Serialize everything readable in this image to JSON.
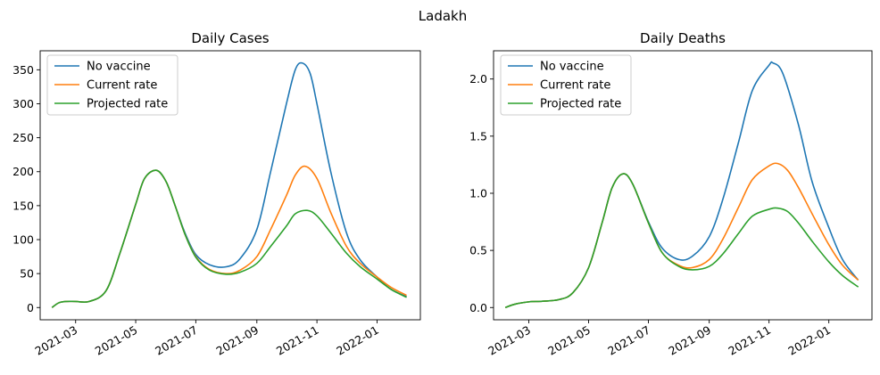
{
  "figure": {
    "suptitle": "Ladakh"
  },
  "chart_data": [
    {
      "type": "line",
      "title": "Daily Cases",
      "xlabel": "",
      "ylabel": "",
      "xlim": [
        "2021-01-24",
        "2022-02-14"
      ],
      "ylim": [
        -18,
        378
      ],
      "xticks": [
        "2021-03-01",
        "2021-05-01",
        "2021-07-01",
        "2021-09-01",
        "2021-11-01",
        "2022-01-01"
      ],
      "xtick_labels": [
        "2021-03",
        "2021-05",
        "2021-07",
        "2021-09",
        "2021-11",
        "2022-01"
      ],
      "yticks": [
        0,
        50,
        100,
        150,
        200,
        250,
        300,
        350
      ],
      "ytick_labels": [
        "0",
        "50",
        "100",
        "150",
        "200",
        "250",
        "300",
        "350"
      ],
      "grid": false,
      "legend": "top-left",
      "series": [
        {
          "name": "No vaccine",
          "color": "#1f77b4",
          "x": [
            "2021-02-05",
            "2021-02-12",
            "2021-02-20",
            "2021-03-01",
            "2021-03-15",
            "2021-04-01",
            "2021-04-15",
            "2021-05-01",
            "2021-05-10",
            "2021-05-22",
            "2021-06-01",
            "2021-06-10",
            "2021-06-20",
            "2021-07-01",
            "2021-07-15",
            "2021-08-01",
            "2021-08-15",
            "2021-09-01",
            "2021-09-15",
            "2021-10-01",
            "2021-10-10",
            "2021-10-17",
            "2021-10-25",
            "2021-11-01",
            "2021-11-15",
            "2021-12-01",
            "2021-12-15",
            "2022-01-01",
            "2022-01-15",
            "2022-01-31"
          ],
          "y": [
            0,
            7,
            9,
            9,
            9,
            25,
            80,
            152,
            190,
            202,
            185,
            150,
            110,
            78,
            63,
            60,
            72,
            115,
            200,
            300,
            350,
            360,
            345,
            300,
            200,
            110,
            70,
            45,
            27,
            16
          ]
        },
        {
          "name": "Current rate",
          "color": "#ff7f0e",
          "x": [
            "2021-02-05",
            "2021-02-12",
            "2021-02-20",
            "2021-03-01",
            "2021-03-15",
            "2021-04-01",
            "2021-04-15",
            "2021-05-01",
            "2021-05-10",
            "2021-05-22",
            "2021-06-01",
            "2021-06-10",
            "2021-06-20",
            "2021-07-01",
            "2021-07-15",
            "2021-08-01",
            "2021-08-15",
            "2021-09-01",
            "2021-09-15",
            "2021-10-01",
            "2021-10-10",
            "2021-10-20",
            "2021-11-01",
            "2021-11-15",
            "2021-12-01",
            "2021-12-15",
            "2022-01-01",
            "2022-01-15",
            "2022-01-31"
          ],
          "y": [
            0,
            7,
            9,
            9,
            9,
            25,
            80,
            152,
            190,
            202,
            185,
            150,
            108,
            75,
            56,
            50,
            55,
            75,
            115,
            165,
            195,
            208,
            190,
            140,
            90,
            65,
            45,
            30,
            18
          ]
        },
        {
          "name": "Projected rate",
          "color": "#2ca02c",
          "x": [
            "2021-02-05",
            "2021-02-12",
            "2021-02-20",
            "2021-03-01",
            "2021-03-15",
            "2021-04-01",
            "2021-04-15",
            "2021-05-01",
            "2021-05-10",
            "2021-05-22",
            "2021-06-01",
            "2021-06-10",
            "2021-06-20",
            "2021-07-01",
            "2021-07-15",
            "2021-08-01",
            "2021-08-15",
            "2021-09-01",
            "2021-09-15",
            "2021-10-01",
            "2021-10-10",
            "2021-10-22",
            "2021-11-01",
            "2021-11-15",
            "2021-12-01",
            "2021-12-15",
            "2022-01-01",
            "2022-01-15",
            "2022-01-31"
          ],
          "y": [
            0,
            7,
            9,
            9,
            9,
            25,
            80,
            152,
            190,
            202,
            185,
            150,
            108,
            74,
            55,
            49,
            52,
            65,
            90,
            120,
            138,
            143,
            135,
            110,
            80,
            60,
            42,
            27,
            15
          ]
        }
      ]
    },
    {
      "type": "line",
      "title": "Daily Deaths",
      "xlabel": "",
      "ylabel": "",
      "xlim": [
        "2021-01-24",
        "2022-02-14"
      ],
      "ylim": [
        -0.107,
        2.247
      ],
      "xticks": [
        "2021-03-01",
        "2021-05-01",
        "2021-07-01",
        "2021-09-01",
        "2021-11-01",
        "2022-01-01"
      ],
      "xtick_labels": [
        "2021-03",
        "2021-05",
        "2021-07",
        "2021-09",
        "2021-11",
        "2022-01"
      ],
      "yticks": [
        0.0,
        0.5,
        1.0,
        1.5,
        2.0
      ],
      "ytick_labels": [
        "0.0",
        "0.5",
        "1.0",
        "1.5",
        "2.0"
      ],
      "grid": false,
      "legend": "top-left",
      "series": [
        {
          "name": "No vaccine",
          "color": "#1f77b4",
          "x": [
            "2021-02-05",
            "2021-02-15",
            "2021-03-01",
            "2021-03-15",
            "2021-04-01",
            "2021-04-15",
            "2021-05-01",
            "2021-05-15",
            "2021-05-25",
            "2021-06-05",
            "2021-06-15",
            "2021-07-01",
            "2021-07-15",
            "2021-08-01",
            "2021-08-15",
            "2021-09-01",
            "2021-09-15",
            "2021-10-01",
            "2021-10-15",
            "2021-11-01",
            "2021-11-05",
            "2021-11-15",
            "2021-12-01",
            "2021-12-15",
            "2022-01-01",
            "2022-01-15",
            "2022-01-31"
          ],
          "y": [
            0,
            0.03,
            0.05,
            0.055,
            0.07,
            0.13,
            0.35,
            0.75,
            1.05,
            1.17,
            1.08,
            0.75,
            0.52,
            0.42,
            0.45,
            0.62,
            0.95,
            1.45,
            1.9,
            2.12,
            2.14,
            2.05,
            1.6,
            1.1,
            0.7,
            0.42,
            0.24
          ]
        },
        {
          "name": "Current rate",
          "color": "#ff7f0e",
          "x": [
            "2021-02-05",
            "2021-02-15",
            "2021-03-01",
            "2021-03-15",
            "2021-04-01",
            "2021-04-15",
            "2021-05-01",
            "2021-05-15",
            "2021-05-25",
            "2021-06-05",
            "2021-06-15",
            "2021-07-01",
            "2021-07-15",
            "2021-08-01",
            "2021-08-15",
            "2021-09-01",
            "2021-09-15",
            "2021-10-01",
            "2021-10-15",
            "2021-11-01",
            "2021-11-10",
            "2021-11-20",
            "2021-12-01",
            "2021-12-15",
            "2022-01-01",
            "2022-01-15",
            "2022-01-31"
          ],
          "y": [
            0,
            0.03,
            0.05,
            0.055,
            0.07,
            0.13,
            0.35,
            0.75,
            1.05,
            1.17,
            1.08,
            0.74,
            0.48,
            0.37,
            0.35,
            0.42,
            0.6,
            0.88,
            1.12,
            1.24,
            1.26,
            1.2,
            1.05,
            0.82,
            0.55,
            0.37,
            0.24
          ]
        },
        {
          "name": "Projected rate",
          "color": "#2ca02c",
          "x": [
            "2021-02-05",
            "2021-02-15",
            "2021-03-01",
            "2021-03-15",
            "2021-04-01",
            "2021-04-15",
            "2021-05-01",
            "2021-05-15",
            "2021-05-25",
            "2021-06-05",
            "2021-06-15",
            "2021-07-01",
            "2021-07-15",
            "2021-08-01",
            "2021-08-15",
            "2021-09-01",
            "2021-09-15",
            "2021-10-01",
            "2021-10-15",
            "2021-11-01",
            "2021-11-10",
            "2021-11-20",
            "2021-12-01",
            "2021-12-15",
            "2022-01-01",
            "2022-01-15",
            "2022-01-31"
          ],
          "y": [
            0,
            0.03,
            0.05,
            0.055,
            0.07,
            0.13,
            0.35,
            0.75,
            1.05,
            1.17,
            1.08,
            0.74,
            0.48,
            0.36,
            0.33,
            0.36,
            0.47,
            0.65,
            0.8,
            0.86,
            0.87,
            0.84,
            0.74,
            0.58,
            0.4,
            0.28,
            0.18
          ]
        }
      ]
    }
  ]
}
